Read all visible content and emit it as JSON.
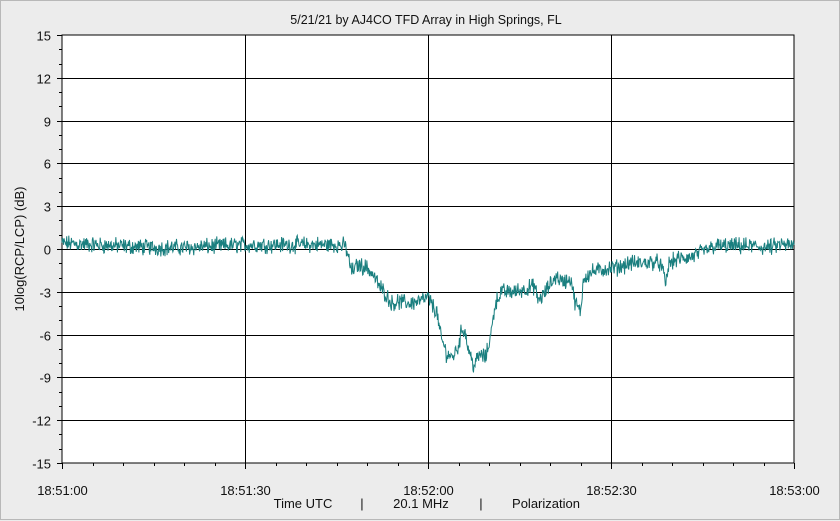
{
  "chart_data": {
    "type": "line",
    "title": "5/21/21  by  AJ4CO TFD Array  in  High Springs, FL",
    "ylabel": "10log(RCP/LCP) (dB)",
    "xlabel_parts": [
      "Time UTC",
      "|",
      "20.1 MHz",
      "|",
      "Polarization"
    ],
    "ylim": [
      -15,
      15
    ],
    "y_ticks": [
      15,
      12,
      9,
      6,
      3,
      0,
      -3,
      -6,
      -9,
      -12,
      -15
    ],
    "x_ticks": [
      "18:51:00",
      "18:51:30",
      "18:52:00",
      "18:52:30",
      "18:53:00"
    ],
    "x_range_seconds": [
      0,
      120
    ],
    "grid": true,
    "legend": "none",
    "line_color": "#1a7f7f",
    "series": [
      {
        "points": [
          [
            0,
            0.4
          ],
          [
            5,
            0.3
          ],
          [
            10,
            0.2
          ],
          [
            15,
            0.1
          ],
          [
            20,
            0.1
          ],
          [
            25,
            0.2
          ],
          [
            30,
            0.3
          ],
          [
            35,
            0.3
          ],
          [
            40,
            0.3
          ],
          [
            45,
            0.3
          ],
          [
            46.5,
            0.2
          ],
          [
            47.5,
            -1.6
          ],
          [
            48.5,
            -1.1
          ],
          [
            50,
            -1.3
          ],
          [
            51,
            -1.8
          ],
          [
            52,
            -2.6
          ],
          [
            53,
            -3.1
          ],
          [
            54,
            -3.8
          ],
          [
            55,
            -3.7
          ],
          [
            57,
            -3.8
          ],
          [
            59,
            -3.6
          ],
          [
            60,
            -3.4
          ],
          [
            61.5,
            -4.5
          ],
          [
            62,
            -6.0
          ],
          [
            63,
            -7.3
          ],
          [
            64,
            -7.6
          ],
          [
            65,
            -6.8
          ],
          [
            65.5,
            -5.7
          ],
          [
            66,
            -5.6
          ],
          [
            66.5,
            -6.8
          ],
          [
            67,
            -7.5
          ],
          [
            67.5,
            -8.2
          ],
          [
            68.5,
            -7.4
          ],
          [
            69.5,
            -7.6
          ],
          [
            70.5,
            -5.5
          ],
          [
            71,
            -3.8
          ],
          [
            72,
            -3.0
          ],
          [
            74,
            -3.0
          ],
          [
            76,
            -2.8
          ],
          [
            77.5,
            -2.6
          ],
          [
            78,
            -3.6
          ],
          [
            79,
            -3.2
          ],
          [
            80,
            -2.5
          ],
          [
            81,
            -1.9
          ],
          [
            82,
            -2.3
          ],
          [
            83.5,
            -2.1
          ],
          [
            84,
            -3.6
          ],
          [
            85,
            -4.5
          ],
          [
            85.5,
            -2.0
          ],
          [
            87,
            -1.6
          ],
          [
            89,
            -1.4
          ],
          [
            91,
            -1.3
          ],
          [
            93,
            -1.0
          ],
          [
            95,
            -1.0
          ],
          [
            97,
            -0.9
          ],
          [
            98,
            -1.0
          ],
          [
            98.5,
            -1.6
          ],
          [
            99,
            -2.4
          ],
          [
            99.5,
            -1.0
          ],
          [
            101,
            -0.7
          ],
          [
            103,
            -0.6
          ],
          [
            105,
            -0.2
          ],
          [
            107,
            0.2
          ],
          [
            110,
            0.2
          ],
          [
            113,
            0.2
          ],
          [
            116,
            0.1
          ],
          [
            118,
            0.3
          ],
          [
            120,
            0.2
          ]
        ]
      }
    ]
  }
}
